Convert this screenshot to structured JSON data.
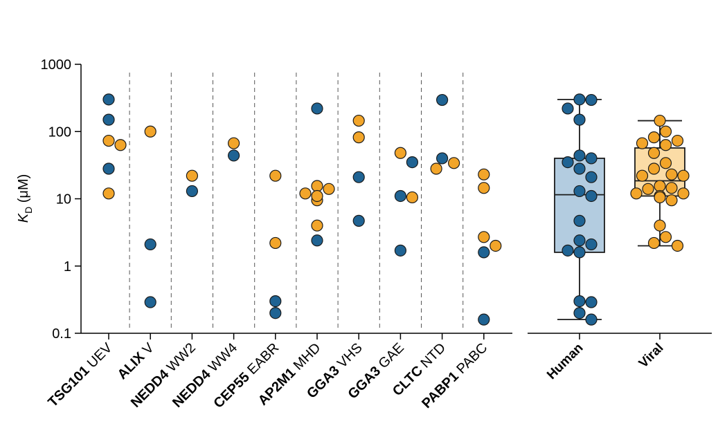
{
  "chart_data": {
    "type": "scatter",
    "ylabel": {
      "main": "K",
      "sub": "D",
      "unit": " (μM)"
    },
    "yscale": "log",
    "ylim": [
      0.1,
      1000
    ],
    "yticks": [
      {
        "value": 1000,
        "label": "1000"
      },
      {
        "value": 100,
        "label": "100"
      },
      {
        "value": 10,
        "label": "10"
      },
      {
        "value": 1,
        "label": "1"
      },
      {
        "value": 0.1,
        "label": "0.1"
      }
    ],
    "colors": {
      "human": "#1f6393",
      "viral": "#f2a52a",
      "human_box": "#b3cce0",
      "viral_box": "#fbdca6",
      "outline": "#1a1a1a"
    },
    "categories": [
      {
        "bold": "TSG101",
        "rest": " UEV",
        "points": [
          {
            "v": 300,
            "s": "human"
          },
          {
            "v": 150,
            "s": "human"
          },
          {
            "v": 63,
            "s": "viral"
          },
          {
            "v": 73,
            "s": "viral"
          },
          {
            "v": 28,
            "s": "human"
          },
          {
            "v": 12,
            "s": "viral"
          }
        ]
      },
      {
        "bold": "ALIX",
        "rest": " V",
        "points": [
          {
            "v": 100,
            "s": "viral"
          },
          {
            "v": 2.1,
            "s": "human"
          },
          {
            "v": 0.29,
            "s": "human"
          }
        ]
      },
      {
        "bold": "NEDD4",
        "rest": " WW2",
        "points": [
          {
            "v": 22,
            "s": "viral"
          },
          {
            "v": 13,
            "s": "human"
          }
        ]
      },
      {
        "bold": "NEDD4",
        "rest": " WW4",
        "points": [
          {
            "v": 67,
            "s": "viral"
          },
          {
            "v": 44,
            "s": "human"
          }
        ]
      },
      {
        "bold": "CEP55",
        "rest": " EABR",
        "points": [
          {
            "v": 22,
            "s": "viral"
          },
          {
            "v": 2.2,
            "s": "viral"
          },
          {
            "v": 0.3,
            "s": "human"
          },
          {
            "v": 0.2,
            "s": "human"
          }
        ]
      },
      {
        "bold": "AP2M1",
        "rest": " MHD",
        "points": [
          {
            "v": 220,
            "s": "human"
          },
          {
            "v": 12,
            "s": "viral"
          },
          {
            "v": 14,
            "s": "viral"
          },
          {
            "v": 15.5,
            "s": "viral"
          },
          {
            "v": 9.5,
            "s": "viral"
          },
          {
            "v": 11,
            "s": "viral"
          },
          {
            "v": 4,
            "s": "viral"
          },
          {
            "v": 2.4,
            "s": "human"
          }
        ]
      },
      {
        "bold": "GGA3",
        "rest": " VHS",
        "points": [
          {
            "v": 145,
            "s": "viral"
          },
          {
            "v": 82,
            "s": "viral"
          },
          {
            "v": 21,
            "s": "human"
          },
          {
            "v": 4.7,
            "s": "human"
          }
        ]
      },
      {
        "bold": "GGA3",
        "rest": " GAE",
        "points": [
          {
            "v": 48,
            "s": "viral"
          },
          {
            "v": 35,
            "s": "human"
          },
          {
            "v": 11,
            "s": "human"
          },
          {
            "v": 10.5,
            "s": "viral"
          },
          {
            "v": 1.7,
            "s": "human"
          }
        ]
      },
      {
        "bold": "CLTC",
        "rest": " NTD",
        "points": [
          {
            "v": 295,
            "s": "human"
          },
          {
            "v": 40,
            "s": "human"
          },
          {
            "v": 28,
            "s": "viral"
          },
          {
            "v": 34,
            "s": "viral"
          }
        ]
      },
      {
        "bold": "PABP1",
        "rest": " PABC",
        "points": [
          {
            "v": 23,
            "s": "viral"
          },
          {
            "v": 14.5,
            "s": "viral"
          },
          {
            "v": 2,
            "s": "viral"
          },
          {
            "v": 2.7,
            "s": "viral"
          },
          {
            "v": 1.6,
            "s": "human"
          },
          {
            "v": 0.16,
            "s": "human"
          }
        ]
      }
    ],
    "groups": [
      {
        "label": "Human",
        "series": "human",
        "box": {
          "whisker_low": 0.16,
          "q1": 1.6,
          "median": 11.5,
          "q3": 40,
          "whisker_high": 300
        },
        "values": [
          300,
          295,
          220,
          150,
          44,
          40,
          35,
          28,
          21,
          13,
          11,
          4.7,
          2.4,
          2.1,
          1.7,
          1.6,
          0.3,
          0.29,
          0.2,
          0.16
        ]
      },
      {
        "label": "Viral",
        "series": "viral",
        "box": {
          "whisker_low": 2,
          "q1": 11,
          "median": 18.5,
          "q3": 57,
          "whisker_high": 145
        },
        "values": [
          145,
          100,
          82,
          73,
          67,
          63,
          48,
          34,
          28,
          23,
          22,
          22,
          15.5,
          14.5,
          14,
          12,
          12,
          11,
          10.5,
          9.5,
          4,
          2.7,
          2.2,
          2
        ]
      }
    ]
  }
}
